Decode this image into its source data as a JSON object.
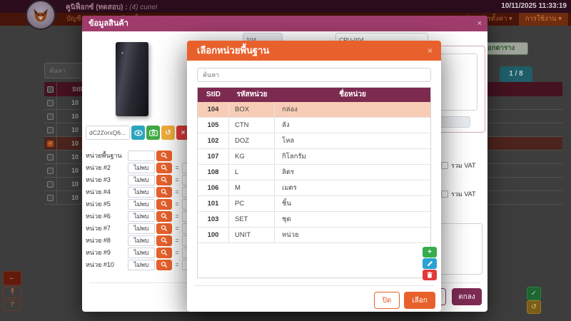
{
  "glyphs": {
    "close": "×",
    "caret": "▾",
    "check": "✓",
    "back": "←",
    "help": "?",
    "undo": "↺",
    "plus": "+",
    "equals": "="
  },
  "topbar": {
    "brand": "คูนิฟ็อกซ์ (ทดสอบ)",
    "separator": ":",
    "session": "(4) cunei",
    "datetime": "10/11/2025  11:33:19"
  },
  "menubar": {
    "left": [
      {
        "label": "บัญชีรายวัน"
      },
      {
        "label": "เจ้าหนี้"
      }
    ],
    "right": [
      {
        "label": "พัสดุ/การตั้งค่า"
      },
      {
        "label": "การใช้งาน",
        "active": true
      }
    ]
  },
  "background_page": {
    "search_placeholder": "ค้นหา",
    "export_button": "ส่งออกตาราง",
    "pagination": "1 / 8",
    "table": {
      "first_header": "StID",
      "rows": [
        {
          "stid": "10",
          "checked": false
        },
        {
          "stid": "10",
          "checked": false
        },
        {
          "stid": "10",
          "checked": false
        },
        {
          "stid": "10",
          "checked": true
        },
        {
          "stid": "10",
          "checked": false
        },
        {
          "stid": "10",
          "checked": false
        },
        {
          "stid": "10",
          "checked": false
        },
        {
          "stid": "10",
          "checked": false
        }
      ]
    }
  },
  "product_modal": {
    "title": "ข้อมูลสินค้า",
    "stid_value": "104",
    "code_value": "CPU-004",
    "image_name": "dC2ZorxQ6...",
    "vat_label": "รวม VAT",
    "cancel_label": "ยกเลิก",
    "ok_label": "ตกลง",
    "unit_rows": [
      {
        "label": "หน่วยพื้นฐาน",
        "value": "",
        "has_equals": false
      },
      {
        "label": "หน่วย #2",
        "value": "ไม่พบ",
        "has_equals": true
      },
      {
        "label": "หน่วย #3",
        "value": "ไม่พบ",
        "has_equals": true
      },
      {
        "label": "หน่วย #4",
        "value": "ไม่พบ",
        "has_equals": true
      },
      {
        "label": "หน่วย #5",
        "value": "ไม่พบ",
        "has_equals": true
      },
      {
        "label": "หน่วย #6",
        "value": "ไม่พบ",
        "has_equals": true
      },
      {
        "label": "หน่วย #7",
        "value": "ไม่พบ",
        "has_equals": true
      },
      {
        "label": "หน่วย #8",
        "value": "ไม่พบ",
        "has_equals": true
      },
      {
        "label": "หน่วย #9",
        "value": "ไม่พบ",
        "has_equals": true
      },
      {
        "label": "หน่วย #10",
        "value": "ไม่พบ",
        "has_equals": true
      }
    ]
  },
  "unit_modal": {
    "title": "เลือกหน่วยพื้นฐาน",
    "search_placeholder": "ค้นหา",
    "close_label": "ปิด",
    "select_label": "เลือก",
    "table": {
      "headers": [
        "StID",
        "รหัสหน่วย",
        "ชื่อหน่วย"
      ],
      "rows": [
        {
          "stid": "104",
          "code": "BOX",
          "name": "กล่อง",
          "selected": true
        },
        {
          "stid": "105",
          "code": "CTN",
          "name": "ลัง",
          "selected": false
        },
        {
          "stid": "102",
          "code": "DOZ",
          "name": "โหล",
          "selected": false
        },
        {
          "stid": "107",
          "code": "KG",
          "name": "กิโลกรัม",
          "selected": false
        },
        {
          "stid": "108",
          "code": "L",
          "name": "ลิตร",
          "selected": false
        },
        {
          "stid": "106",
          "code": "M",
          "name": "เมตร",
          "selected": false
        },
        {
          "stid": "101",
          "code": "PC",
          "name": "ชิ้น",
          "selected": false
        },
        {
          "stid": "103",
          "code": "SET",
          "name": "ชุด",
          "selected": false
        },
        {
          "stid": "100",
          "code": "UNIT",
          "name": "หน่วย",
          "selected": false
        }
      ]
    }
  },
  "colors": {
    "accent_orange": "#e8612c",
    "accent_magenta": "#a03c6c",
    "table_header": "#7d2a50",
    "selected_row": "#f8cdb7",
    "ok_button": "#7d2b53",
    "add_green": "#36ad4c",
    "edit_blue": "#2aa2d3",
    "delete_red": "#e03a3a"
  }
}
